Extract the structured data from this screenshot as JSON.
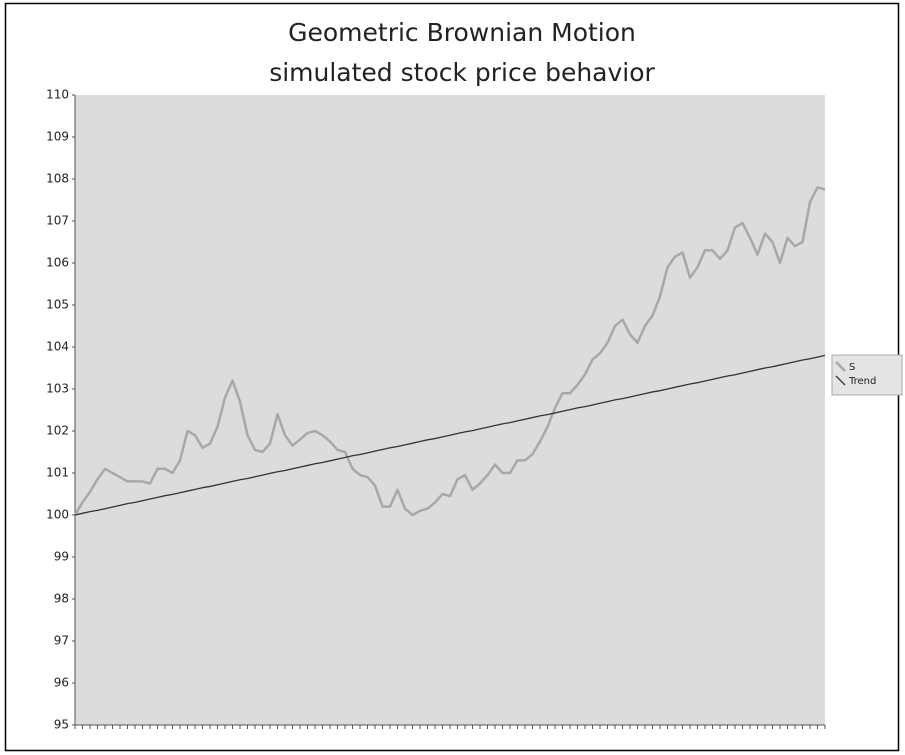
{
  "chart_data": {
    "type": "line",
    "title": "Geometric Brownian Motion",
    "subtitle": "simulated stock price behavior",
    "categories": [
      null,
      null,
      null,
      null,
      null,
      null,
      null,
      null,
      null,
      null,
      null,
      null,
      null,
      null,
      null,
      null,
      null,
      null,
      null,
      null,
      null,
      null,
      null,
      null,
      null,
      null,
      null,
      null,
      null,
      null,
      null,
      null,
      null,
      null,
      null,
      null,
      null,
      null,
      null,
      null,
      null,
      null,
      null,
      null,
      null,
      null,
      null,
      null,
      null,
      null,
      null,
      null,
      null,
      null,
      null,
      null,
      null,
      null,
      null,
      null,
      null,
      null,
      null,
      null,
      null,
      null,
      null,
      null,
      null,
      null,
      null,
      null,
      null,
      null,
      null,
      null,
      null,
      null,
      null,
      null,
      null,
      null,
      null,
      null,
      null,
      null,
      null,
      null,
      null,
      null,
      null,
      null,
      null,
      null,
      null,
      null,
      null,
      null,
      null,
      null,
      null
    ],
    "series": [
      {
        "name": "S",
        "color": "#a8a8a8",
        "values": [
          100.0,
          100.3,
          100.55,
          100.85,
          101.1,
          101.0,
          100.9,
          100.8,
          100.8,
          100.8,
          100.75,
          101.1,
          101.1,
          101.0,
          101.3,
          102.0,
          101.9,
          101.6,
          101.7,
          102.1,
          102.8,
          103.2,
          102.7,
          101.9,
          101.55,
          101.5,
          101.7,
          102.4,
          101.9,
          101.65,
          101.8,
          101.95,
          102.0,
          101.9,
          101.75,
          101.55,
          101.5,
          101.1,
          100.95,
          100.9,
          100.7,
          100.2,
          100.2,
          100.6,
          100.15,
          100.0,
          100.1,
          100.15,
          100.3,
          100.5,
          100.45,
          100.85,
          100.95,
          100.6,
          100.75,
          100.95,
          101.2,
          101.0,
          101.0,
          101.3,
          101.3,
          101.45,
          101.75,
          102.1,
          102.55,
          102.9,
          102.9,
          103.1,
          103.35,
          103.7,
          103.85,
          104.1,
          104.5,
          104.65,
          104.3,
          104.1,
          104.5,
          104.75,
          105.2,
          105.9,
          106.15,
          106.25,
          105.65,
          105.9,
          106.3,
          106.3,
          106.1,
          106.3,
          106.85,
          106.95,
          106.6,
          106.2,
          106.7,
          106.5,
          106.0,
          106.6,
          106.4,
          106.5,
          107.45,
          107.8,
          107.75
        ]
      },
      {
        "name": "Trend",
        "color": "#333333",
        "values": [
          100.0,
          100.04,
          100.08,
          100.11,
          100.15,
          100.19,
          100.23,
          100.27,
          100.3,
          100.34,
          100.38,
          100.42,
          100.46,
          100.49,
          100.53,
          100.57,
          100.61,
          100.65,
          100.68,
          100.72,
          100.76,
          100.8,
          100.84,
          100.87,
          100.91,
          100.95,
          100.99,
          101.03,
          101.06,
          101.1,
          101.14,
          101.18,
          101.22,
          101.25,
          101.29,
          101.33,
          101.37,
          101.41,
          101.44,
          101.48,
          101.52,
          101.56,
          101.6,
          101.63,
          101.67,
          101.71,
          101.75,
          101.79,
          101.82,
          101.86,
          101.9,
          101.94,
          101.98,
          102.01,
          102.05,
          102.09,
          102.13,
          102.17,
          102.2,
          102.24,
          102.28,
          102.32,
          102.36,
          102.39,
          102.43,
          102.47,
          102.51,
          102.55,
          102.58,
          102.62,
          102.66,
          102.7,
          102.74,
          102.77,
          102.81,
          102.85,
          102.89,
          102.93,
          102.96,
          103.0,
          103.04,
          103.08,
          103.12,
          103.15,
          103.19,
          103.23,
          103.27,
          103.31,
          103.34,
          103.38,
          103.42,
          103.46,
          103.5,
          103.53,
          103.57,
          103.61,
          103.65,
          103.69,
          103.72,
          103.76,
          103.8
        ]
      }
    ],
    "ylim": [
      95,
      110
    ],
    "yticks": [
      95,
      96,
      97,
      98,
      99,
      100,
      101,
      102,
      103,
      104,
      105,
      106,
      107,
      108,
      109,
      110
    ],
    "grid": false,
    "legend": "right",
    "plot_background": "#dcdcdc"
  }
}
